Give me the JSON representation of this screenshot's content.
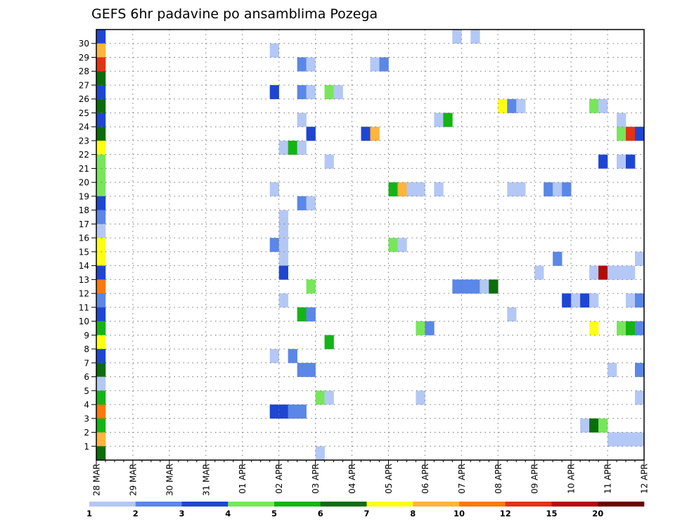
{
  "chart_data": {
    "type": "heatmap",
    "title": "GEFS 6hr padavine po ansamblima Pozega",
    "x_tick_labels": [
      "28 MAR",
      "29 MAR",
      "30 MAR",
      "31 MAR",
      "01 APR",
      "02 APR",
      "03 APR",
      "04 APR",
      "05 APR",
      "06 APR",
      "07 APR",
      "08 APR",
      "09 APR",
      "10 APR",
      "11 APR",
      "12 APR"
    ],
    "y_tick_labels": [
      "1",
      "2",
      "3",
      "4",
      "5",
      "6",
      "7",
      "8",
      "9",
      "10",
      "11",
      "12",
      "13",
      "14",
      "15",
      "16",
      "17",
      "18",
      "19",
      "20",
      "21",
      "22",
      "23",
      "24",
      "25",
      "26",
      "27",
      "28",
      "29",
      "30"
    ],
    "ylim": [
      0,
      30
    ],
    "x_unit": "6h steps from 28 MAR 00z (4 steps per day)",
    "grid": true,
    "colorbar": {
      "placement": "bottom",
      "labels": [
        "1",
        "2",
        "3",
        "4",
        "5",
        "6",
        "7",
        "8",
        "10",
        "12",
        "15",
        "20"
      ],
      "colors": [
        "#b4c8f5",
        "#5a87e8",
        "#1e46d2",
        "#78e65a",
        "#14b414",
        "#0a6e0a",
        "#ffff14",
        "#ffb43c",
        "#ff780a",
        "#e63214",
        "#b40a0a",
        "#6e0000"
      ]
    },
    "cells": [
      {
        "m": 30,
        "t": 0,
        "c": 2
      },
      {
        "m": 29,
        "t": 0,
        "c": 7
      },
      {
        "m": 28,
        "t": 0,
        "c": 9
      },
      {
        "m": 27,
        "t": 0,
        "c": 5
      },
      {
        "m": 26,
        "t": 0,
        "c": 2
      },
      {
        "m": 25,
        "t": 0,
        "c": 5
      },
      {
        "m": 24,
        "t": 0,
        "c": 2
      },
      {
        "m": 23,
        "t": 0,
        "c": 5
      },
      {
        "m": 22,
        "t": 0,
        "c": 6
      },
      {
        "m": 21,
        "t": 0,
        "c": 3
      },
      {
        "m": 20,
        "t": 0,
        "c": 3
      },
      {
        "m": 19,
        "t": 0,
        "c": 3
      },
      {
        "m": 18,
        "t": 0,
        "c": 2
      },
      {
        "m": 17,
        "t": 0,
        "c": 1
      },
      {
        "m": 16,
        "t": 0,
        "c": 0
      },
      {
        "m": 15,
        "t": 0,
        "c": 6
      },
      {
        "m": 14,
        "t": 0,
        "c": 6
      },
      {
        "m": 13,
        "t": 0,
        "c": 2
      },
      {
        "m": 12,
        "t": 0,
        "c": 8
      },
      {
        "m": 11,
        "t": 0,
        "c": 1
      },
      {
        "m": 10,
        "t": 0,
        "c": 2
      },
      {
        "m": 9,
        "t": 0,
        "c": 4
      },
      {
        "m": 8,
        "t": 0,
        "c": 6
      },
      {
        "m": 7,
        "t": 0,
        "c": 2
      },
      {
        "m": 6,
        "t": 0,
        "c": 5
      },
      {
        "m": 5,
        "t": 0,
        "c": 0
      },
      {
        "m": 4,
        "t": 0,
        "c": 4
      },
      {
        "m": 3,
        "t": 0,
        "c": 8
      },
      {
        "m": 2,
        "t": 0,
        "c": 4
      },
      {
        "m": 1,
        "t": 0,
        "c": 7
      },
      {
        "m": 0,
        "t": 0,
        "c": 5
      },
      {
        "m": 30,
        "t": 39,
        "c": 0
      },
      {
        "m": 30,
        "t": 41,
        "c": 0
      },
      {
        "m": 29,
        "t": 19,
        "c": 0
      },
      {
        "m": 28,
        "t": 22,
        "c": 1
      },
      {
        "m": 28,
        "t": 23,
        "c": 0
      },
      {
        "m": 28,
        "t": 30,
        "c": 0
      },
      {
        "m": 28,
        "t": 31,
        "c": 1
      },
      {
        "m": 26,
        "t": 19,
        "c": 2
      },
      {
        "m": 26,
        "t": 22,
        "c": 1
      },
      {
        "m": 26,
        "t": 23,
        "c": 0
      },
      {
        "m": 26,
        "t": 25,
        "c": 3
      },
      {
        "m": 26,
        "t": 26,
        "c": 0
      },
      {
        "m": 25,
        "t": 44,
        "c": 6
      },
      {
        "m": 25,
        "t": 45,
        "c": 1
      },
      {
        "m": 25,
        "t": 46,
        "c": 0
      },
      {
        "m": 25,
        "t": 54,
        "c": 3
      },
      {
        "m": 25,
        "t": 55,
        "c": 0
      },
      {
        "m": 24,
        "t": 22,
        "c": 0
      },
      {
        "m": 24,
        "t": 37,
        "c": 0
      },
      {
        "m": 24,
        "t": 38,
        "c": 4
      },
      {
        "m": 24,
        "t": 57,
        "c": 0
      },
      {
        "m": 23,
        "t": 23,
        "c": 2
      },
      {
        "m": 23,
        "t": 29,
        "c": 2
      },
      {
        "m": 23,
        "t": 30,
        "c": 7
      },
      {
        "m": 23,
        "t": 57,
        "c": 3
      },
      {
        "m": 23,
        "t": 58,
        "c": 9
      },
      {
        "m": 23,
        "t": 59,
        "c": 2
      },
      {
        "m": 22,
        "t": 20,
        "c": 0
      },
      {
        "m": 22,
        "t": 21,
        "c": 4
      },
      {
        "m": 22,
        "t": 22,
        "c": 0
      },
      {
        "m": 21,
        "t": 25,
        "c": 0
      },
      {
        "m": 21,
        "t": 55,
        "c": 2
      },
      {
        "m": 21,
        "t": 57,
        "c": 0
      },
      {
        "m": 21,
        "t": 58,
        "c": 2
      },
      {
        "m": 19,
        "t": 19,
        "c": 0
      },
      {
        "m": 19,
        "t": 32,
        "c": 4
      },
      {
        "m": 19,
        "t": 33,
        "c": 7
      },
      {
        "m": 19,
        "t": 34,
        "c": 0
      },
      {
        "m": 19,
        "t": 35,
        "c": 0
      },
      {
        "m": 19,
        "t": 37,
        "c": 0
      },
      {
        "m": 19,
        "t": 45,
        "c": 0
      },
      {
        "m": 19,
        "t": 46,
        "c": 0
      },
      {
        "m": 19,
        "t": 49,
        "c": 1
      },
      {
        "m": 19,
        "t": 50,
        "c": 0
      },
      {
        "m": 19,
        "t": 51,
        "c": 1
      },
      {
        "m": 18,
        "t": 22,
        "c": 1
      },
      {
        "m": 18,
        "t": 23,
        "c": 0
      },
      {
        "m": 17,
        "t": 20,
        "c": 0
      },
      {
        "m": 16,
        "t": 20,
        "c": 0
      },
      {
        "m": 15,
        "t": 19,
        "c": 1
      },
      {
        "m": 15,
        "t": 20,
        "c": 0
      },
      {
        "m": 15,
        "t": 32,
        "c": 3
      },
      {
        "m": 15,
        "t": 33,
        "c": 0
      },
      {
        "m": 14,
        "t": 20,
        "c": 0
      },
      {
        "m": 14,
        "t": 50,
        "c": 1
      },
      {
        "m": 14,
        "t": 59,
        "c": 0
      },
      {
        "m": 13,
        "t": 20,
        "c": 2
      },
      {
        "m": 13,
        "t": 48,
        "c": 0
      },
      {
        "m": 13,
        "t": 54,
        "c": 0
      },
      {
        "m": 13,
        "t": 55,
        "c": 10
      },
      {
        "m": 13,
        "t": 56,
        "c": 0
      },
      {
        "m": 13,
        "t": 57,
        "c": 0
      },
      {
        "m": 13,
        "t": 58,
        "c": 0
      },
      {
        "m": 12,
        "t": 23,
        "c": 3
      },
      {
        "m": 12,
        "t": 39,
        "c": 1
      },
      {
        "m": 12,
        "t": 40,
        "c": 1
      },
      {
        "m": 12,
        "t": 41,
        "c": 1
      },
      {
        "m": 12,
        "t": 42,
        "c": 0
      },
      {
        "m": 12,
        "t": 43,
        "c": 5
      },
      {
        "m": 11,
        "t": 20,
        "c": 0
      },
      {
        "m": 11,
        "t": 51,
        "c": 2
      },
      {
        "m": 11,
        "t": 52,
        "c": 0
      },
      {
        "m": 11,
        "t": 53,
        "c": 2
      },
      {
        "m": 11,
        "t": 54,
        "c": 0
      },
      {
        "m": 11,
        "t": 58,
        "c": 0
      },
      {
        "m": 11,
        "t": 59,
        "c": 1
      },
      {
        "m": 10,
        "t": 22,
        "c": 4
      },
      {
        "m": 10,
        "t": 23,
        "c": 1
      },
      {
        "m": 10,
        "t": 45,
        "c": 0
      },
      {
        "m": 9,
        "t": 35,
        "c": 3
      },
      {
        "m": 9,
        "t": 36,
        "c": 1
      },
      {
        "m": 9,
        "t": 54,
        "c": 6
      },
      {
        "m": 9,
        "t": 57,
        "c": 3
      },
      {
        "m": 9,
        "t": 58,
        "c": 4
      },
      {
        "m": 9,
        "t": 59,
        "c": 1
      },
      {
        "m": 8,
        "t": 25,
        "c": 4
      },
      {
        "m": 7,
        "t": 19,
        "c": 0
      },
      {
        "m": 7,
        "t": 21,
        "c": 1
      },
      {
        "m": 6,
        "t": 22,
        "c": 1
      },
      {
        "m": 6,
        "t": 23,
        "c": 1
      },
      {
        "m": 6,
        "t": 56,
        "c": 0
      },
      {
        "m": 6,
        "t": 59,
        "c": 1
      },
      {
        "m": 4,
        "t": 24,
        "c": 3
      },
      {
        "m": 4,
        "t": 25,
        "c": 0
      },
      {
        "m": 4,
        "t": 35,
        "c": 0
      },
      {
        "m": 4,
        "t": 59,
        "c": 0
      },
      {
        "m": 3,
        "t": 19,
        "c": 2
      },
      {
        "m": 3,
        "t": 20,
        "c": 2
      },
      {
        "m": 3,
        "t": 21,
        "c": 1
      },
      {
        "m": 3,
        "t": 22,
        "c": 1
      },
      {
        "m": 2,
        "t": 53,
        "c": 0
      },
      {
        "m": 2,
        "t": 54,
        "c": 5
      },
      {
        "m": 2,
        "t": 55,
        "c": 3
      },
      {
        "m": 1,
        "t": 56,
        "c": 0
      },
      {
        "m": 1,
        "t": 57,
        "c": 0
      },
      {
        "m": 1,
        "t": 58,
        "c": 0
      },
      {
        "m": 1,
        "t": 59,
        "c": 0
      },
      {
        "m": 0,
        "t": 24,
        "c": 0
      }
    ]
  }
}
